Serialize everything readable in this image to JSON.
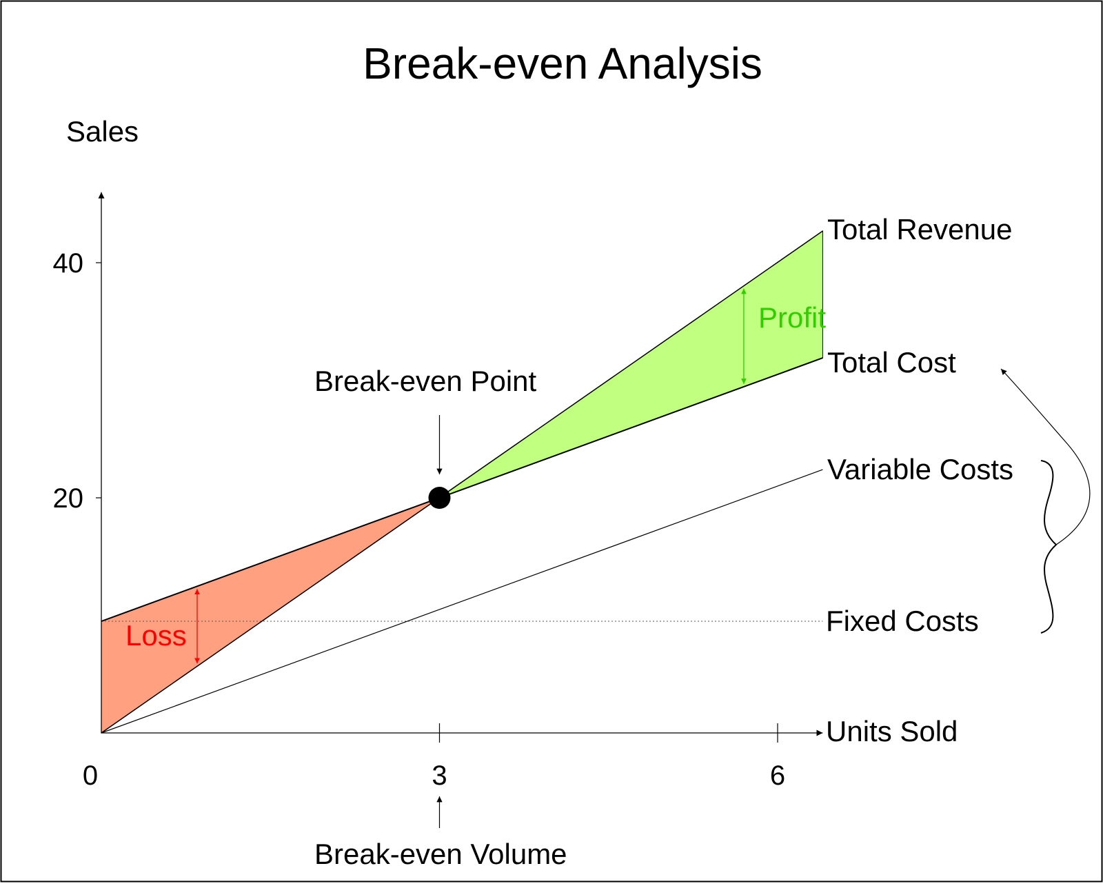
{
  "chart_data": {
    "type": "line",
    "title": "Break-even Analysis",
    "ylabel": "Sales",
    "xlabel": "Units Sold",
    "xlim": [
      0,
      6.4
    ],
    "ylim": [
      0,
      46
    ],
    "x_ticks": [
      0,
      3,
      6
    ],
    "y_ticks": [
      20,
      40
    ],
    "series": [
      {
        "name": "Total Revenue",
        "x": [
          0,
          6.4
        ],
        "y": [
          0,
          42.7
        ]
      },
      {
        "name": "Total Cost",
        "x": [
          0,
          6.4
        ],
        "y": [
          9.5,
          31.9
        ]
      },
      {
        "name": "Variable Costs",
        "x": [
          0,
          6.4
        ],
        "y": [
          0,
          22.4
        ]
      },
      {
        "name": "Fixed Costs",
        "x": [
          0,
          6.4
        ],
        "y": [
          9.5,
          9.5
        ]
      }
    ],
    "break_even": {
      "x": 3,
      "y": 20
    },
    "annotations": {
      "profit": "Profit",
      "loss": "Loss",
      "break_even_point": "Break-even Point",
      "break_even_volume": "Break-even Volume"
    },
    "colors": {
      "profit_fill": "#c0ff80",
      "profit_text": "#33cc00",
      "loss_fill": "#ffa080",
      "loss_text": "#ff0000",
      "line": "#000000"
    }
  }
}
